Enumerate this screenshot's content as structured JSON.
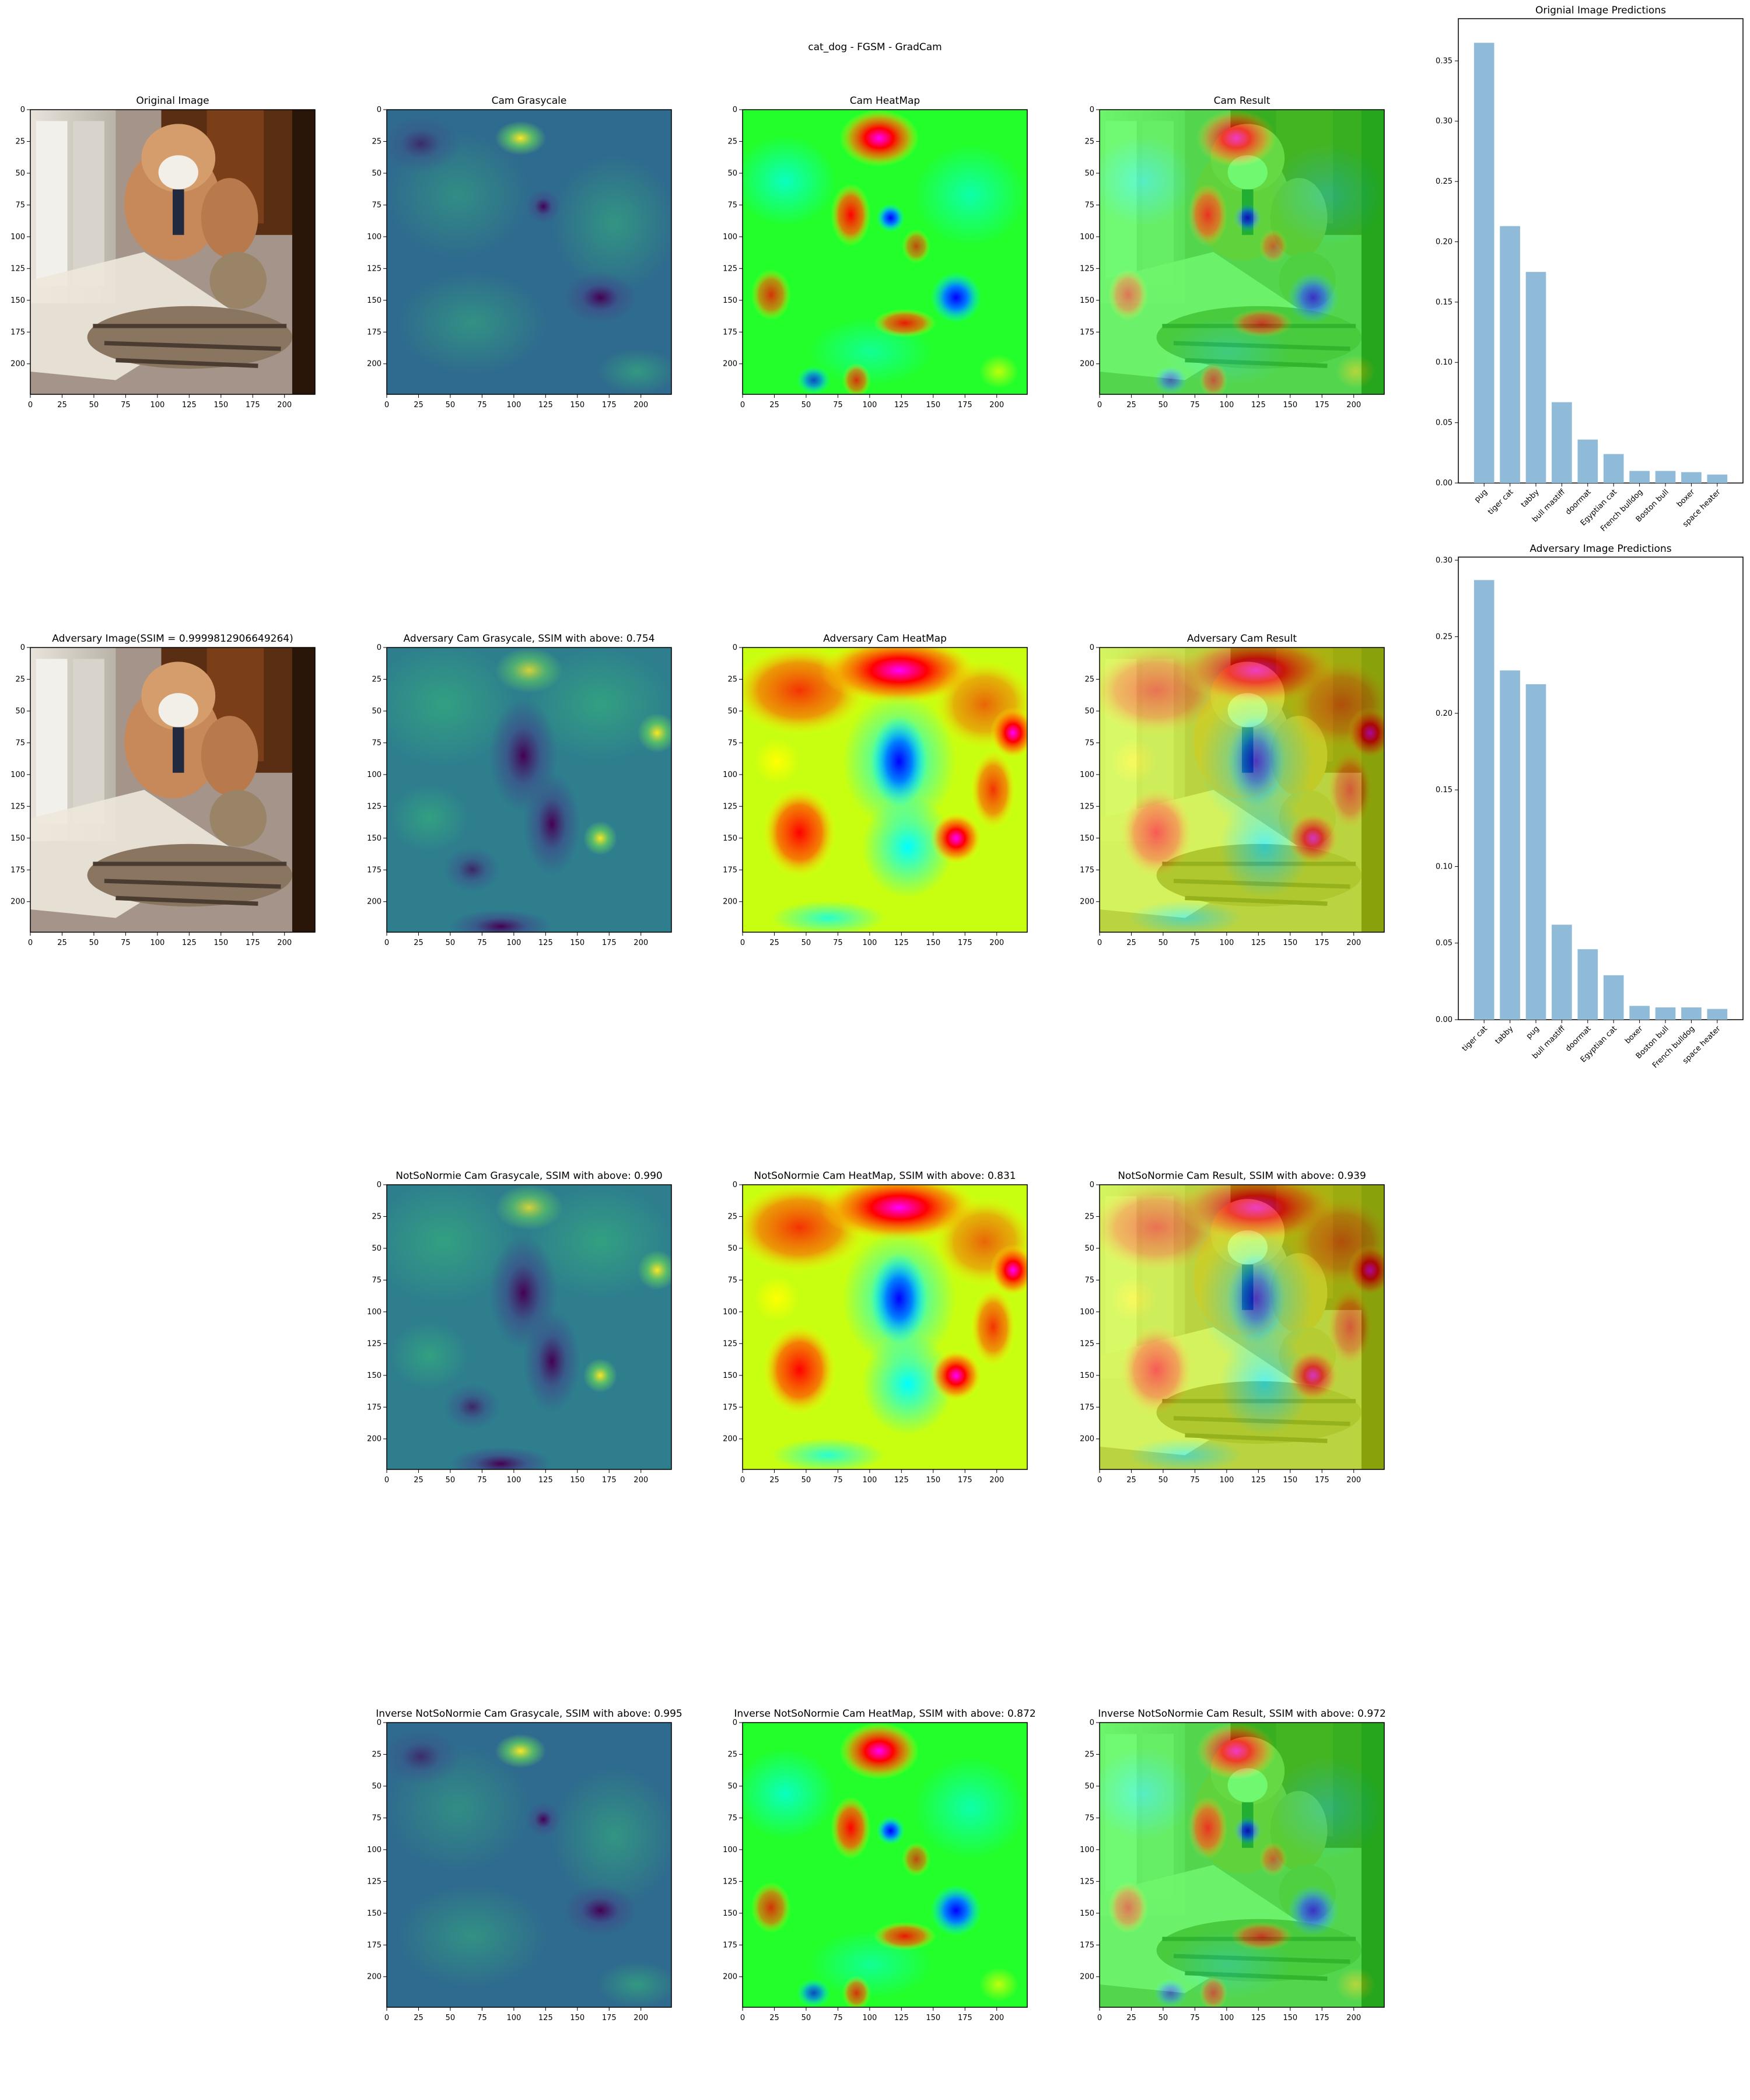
{
  "figure_title": "cat_dog - FGSM - GradCam",
  "panels": {
    "original_image": "Original Image",
    "cam_grayscale": "Cam Grasycale",
    "cam_heatmap": "Cam HeatMap",
    "cam_result": "Cam Result",
    "adv_image": "Adversary Image(SSIM = 0.9999812906649264)",
    "adv_cam_grayscale": "Adversary Cam Grasycale, SSIM with above: 0.754",
    "adv_cam_heatmap": "Adversary Cam HeatMap",
    "adv_cam_result": "Adversary Cam Result",
    "nsn_grayscale": "NotSoNormie Cam Grasycale, SSIM with above: 0.990",
    "nsn_heatmap": "NotSoNormie Cam HeatMap, SSIM with above: 0.831",
    "nsn_result": "NotSoNormie Cam Result, SSIM with above: 0.939",
    "inv_grayscale": "Inverse NotSoNormie Cam Grasycale, SSIM with above: 0.995",
    "inv_heatmap": "Inverse NotSoNormie Cam HeatMap, SSIM with above: 0.872",
    "inv_result": "Inverse NotSoNormie Cam Result, SSIM with above: 0.972"
  },
  "image_axes": {
    "x_ticks": [
      0,
      25,
      50,
      75,
      100,
      125,
      150,
      175,
      200
    ],
    "y_ticks": [
      0,
      25,
      50,
      75,
      100,
      125,
      150,
      175,
      200
    ],
    "range": [
      0,
      224
    ]
  },
  "colors": {
    "bar": "#8fbbd9",
    "viridis_dark": "#440154",
    "viridis_mid": "#21918c",
    "viridis_light": "#fde725"
  },
  "chart_data": [
    {
      "type": "bar",
      "title": "Orignial Image Predictions",
      "categories": [
        "pug",
        "tiger cat",
        "tabby",
        "bull mastiff",
        "doormat",
        "Egyptian cat",
        "French bulldog",
        "Boston bull",
        "boxer",
        "space heater"
      ],
      "values": [
        0.365,
        0.213,
        0.175,
        0.067,
        0.036,
        0.024,
        0.01,
        0.01,
        0.009,
        0.007
      ],
      "y_ticks": [
        0.0,
        0.05,
        0.1,
        0.15,
        0.2,
        0.25,
        0.3,
        0.35
      ],
      "ylim": [
        0,
        0.385
      ],
      "xlabel": "",
      "ylabel": ""
    },
    {
      "type": "bar",
      "title": "Adversary Image Predictions",
      "categories": [
        "tiger cat",
        "tabby",
        "pug",
        "bull mastiff",
        "doormat",
        "Egyptian cat",
        "boxer",
        "Boston bull",
        "French bulldog",
        "space heater"
      ],
      "values": [
        0.287,
        0.228,
        0.219,
        0.062,
        0.046,
        0.029,
        0.009,
        0.008,
        0.008,
        0.007
      ],
      "y_ticks": [
        0.0,
        0.05,
        0.1,
        0.15,
        0.2,
        0.25,
        0.3
      ],
      "ylim": [
        0,
        0.302
      ],
      "xlabel": "",
      "ylabel": ""
    }
  ]
}
